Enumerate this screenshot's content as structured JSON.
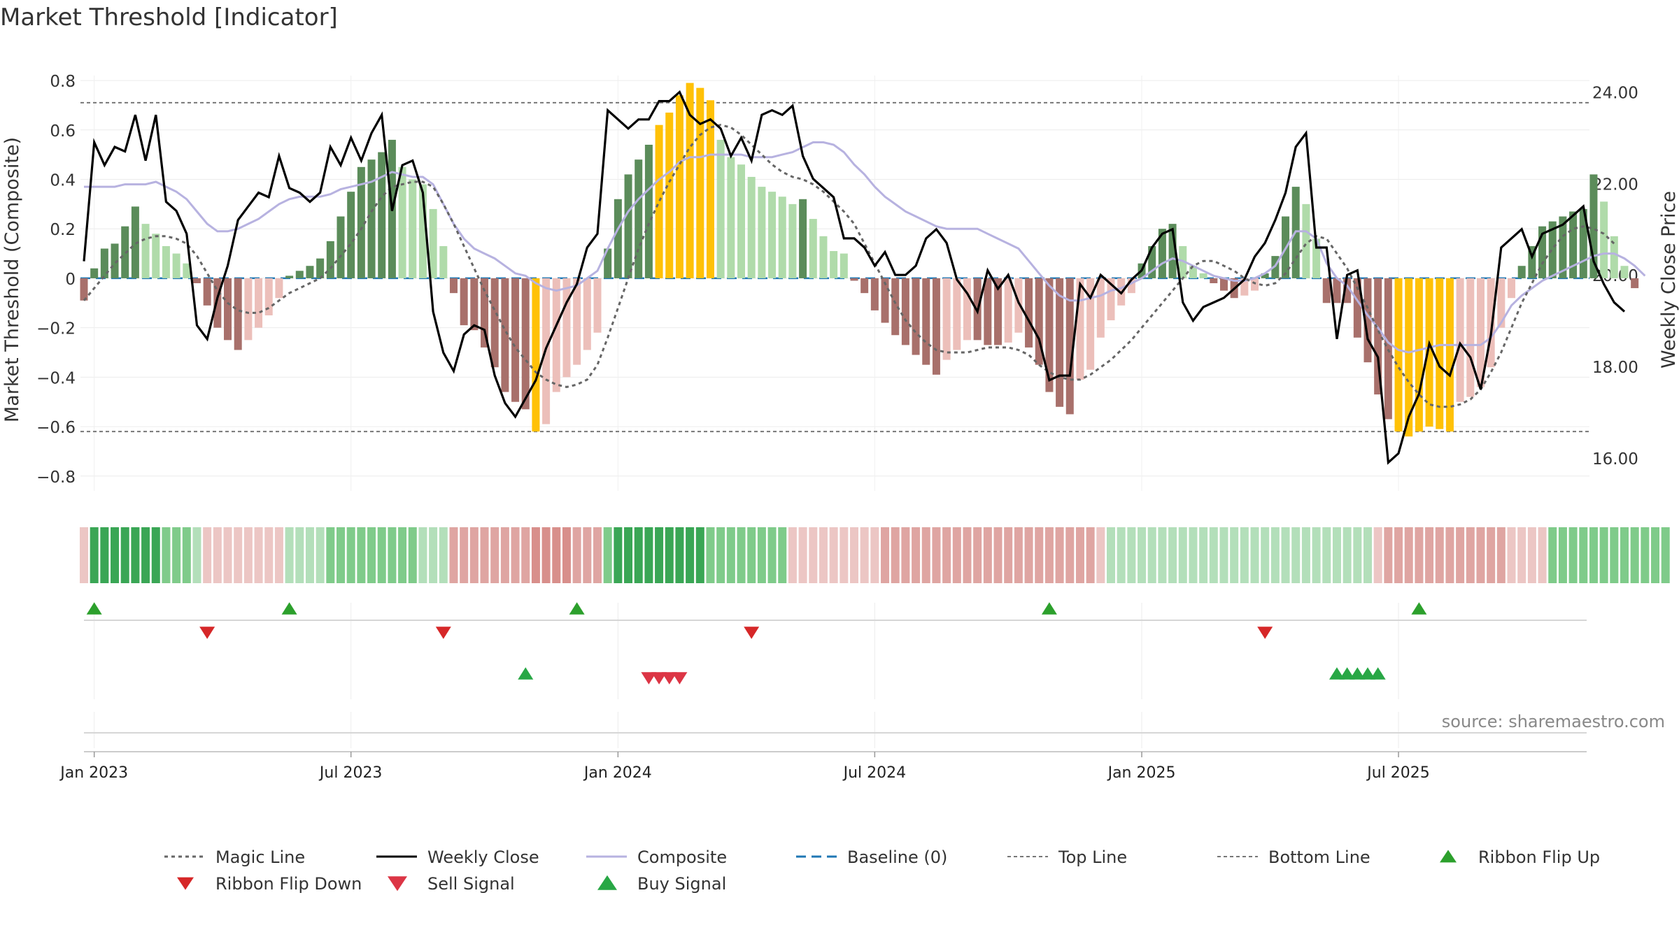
{
  "chart_data": {
    "type": "bar",
    "title": "Market Threshold [Indicator]",
    "ylabel": "Market Threshold (Composite)",
    "ylabel_right": "Weekly Close Price",
    "source": "source: sharemaestro.com",
    "ylim": [
      -0.86,
      0.82
    ],
    "ylim_right": [
      15.28,
      24.36
    ],
    "yticks": [
      {
        "v": 0.8,
        "label": "0.8"
      },
      {
        "v": 0.6,
        "label": "0.6"
      },
      {
        "v": 0.4,
        "label": "0.4"
      },
      {
        "v": 0.2,
        "label": "0.2"
      },
      {
        "v": 0,
        "label": "0"
      },
      {
        "v": -0.2,
        "label": "−0.2"
      },
      {
        "v": -0.4,
        "label": "−0.4"
      },
      {
        "v": -0.6,
        "label": "−0.6"
      },
      {
        "v": -0.8,
        "label": "−0.8"
      }
    ],
    "yticks_right": [
      {
        "v": 24,
        "label": "24.00"
      },
      {
        "v": 22,
        "label": "22.00"
      },
      {
        "v": 20,
        "label": "20.00"
      },
      {
        "v": 18,
        "label": "18.00"
      },
      {
        "v": 16,
        "label": "16.00"
      }
    ],
    "xticks": [
      {
        "week": 1,
        "label": "Jan 2023"
      },
      {
        "week": 26,
        "label": "Jul 2023"
      },
      {
        "week": 52,
        "label": "Jan 2024"
      },
      {
        "week": 77,
        "label": "Jul 2024"
      },
      {
        "week": 103,
        "label": "Jan 2025"
      },
      {
        "week": 128,
        "label": "Jul 2025"
      }
    ],
    "top_line": 0.71,
    "bottom_line": -0.62,
    "composite": [
      -0.09,
      0.04,
      0.12,
      0.14,
      0.21,
      0.29,
      0.22,
      0.18,
      0.13,
      0.1,
      0.06,
      -0.02,
      -0.11,
      -0.2,
      -0.25,
      -0.29,
      -0.25,
      -0.2,
      -0.15,
      -0.08,
      0.01,
      0.03,
      0.05,
      0.08,
      0.15,
      0.25,
      0.35,
      0.45,
      0.48,
      0.51,
      0.56,
      0.45,
      0.4,
      0.38,
      0.28,
      0.13,
      -0.06,
      -0.19,
      -0.21,
      -0.28,
      -0.36,
      -0.46,
      -0.5,
      -0.53,
      -0.62,
      -0.59,
      -0.46,
      -0.4,
      -0.35,
      -0.29,
      -0.22,
      0.12,
      0.32,
      0.42,
      0.48,
      0.54,
      0.62,
      0.67,
      0.74,
      0.79,
      0.77,
      0.72,
      0.56,
      0.49,
      0.46,
      0.41,
      0.37,
      0.35,
      0.33,
      0.3,
      0.32,
      0.24,
      0.17,
      0.11,
      0.1,
      -0.01,
      -0.06,
      -0.13,
      -0.18,
      -0.23,
      -0.27,
      -0.31,
      -0.35,
      -0.39,
      -0.33,
      -0.29,
      -0.25,
      -0.25,
      -0.27,
      -0.27,
      -0.26,
      -0.22,
      -0.28,
      -0.35,
      -0.46,
      -0.52,
      -0.55,
      -0.41,
      -0.37,
      -0.24,
      -0.17,
      -0.11,
      -0.06,
      0.06,
      0.13,
      0.2,
      0.22,
      0.13,
      0.05,
      0.02,
      -0.02,
      -0.05,
      -0.08,
      -0.07,
      -0.05,
      0.02,
      0.09,
      0.25,
      0.37,
      0.3,
      0.16,
      -0.1,
      -0.1,
      -0.1,
      -0.24,
      -0.34,
      -0.47,
      -0.57,
      -0.62,
      -0.64,
      -0.62,
      -0.6,
      -0.61,
      -0.62,
      -0.5,
      -0.48,
      -0.44,
      -0.36,
      -0.2,
      -0.08,
      0.05,
      0.13,
      0.21,
      0.23,
      0.25,
      0.27,
      0.28,
      0.42,
      0.31,
      0.17,
      0.05,
      -0.04
    ],
    "weekly_close": [
      20.3,
      22.9,
      22.4,
      22.8,
      22.7,
      23.5,
      22.5,
      23.5,
      21.6,
      21.4,
      20.9,
      18.9,
      18.6,
      19.5,
      20.2,
      21.2,
      21.5,
      21.8,
      21.7,
      22.6,
      21.9,
      21.8,
      21.6,
      21.8,
      22.8,
      22.4,
      23.0,
      22.5,
      23.1,
      23.5,
      21.4,
      22.4,
      22.5,
      21.8,
      19.2,
      18.3,
      17.9,
      18.7,
      18.9,
      18.8,
      17.8,
      17.2,
      16.9,
      17.3,
      17.7,
      18.4,
      18.9,
      19.4,
      19.8,
      20.6,
      20.9,
      23.6,
      23.4,
      23.2,
      23.4,
      23.4,
      23.8,
      23.8,
      24.0,
      23.5,
      23.3,
      23.4,
      23.2,
      22.6,
      23.0,
      22.5,
      23.5,
      23.6,
      23.5,
      23.7,
      22.6,
      22.1,
      21.9,
      21.7,
      20.8,
      20.8,
      20.6,
      20.2,
      20.5,
      20.0,
      20.0,
      20.2,
      20.8,
      21.0,
      20.7,
      19.9,
      19.6,
      19.2,
      20.1,
      19.7,
      20.0,
      19.4,
      19.0,
      18.6,
      17.7,
      17.8,
      17.8,
      19.8,
      19.5,
      20.0,
      19.8,
      19.6,
      19.9,
      20.1,
      20.6,
      20.9,
      21.0,
      19.4,
      19.0,
      19.3,
      19.4,
      19.5,
      19.7,
      19.9,
      20.4,
      20.7,
      21.2,
      21.8,
      22.8,
      23.1,
      20.6,
      20.6,
      18.6,
      20.0,
      20.1,
      18.6,
      18.2,
      15.9,
      16.1,
      16.9,
      17.4,
      18.5,
      18.0,
      17.8,
      18.5,
      18.2,
      17.5,
      18.7,
      20.6,
      20.8,
      21.0,
      20.4,
      20.9,
      21.0,
      21.1,
      21.3,
      21.5,
      20.3,
      19.8,
      19.4,
      19.2
    ],
    "composite_line": [
      0.37,
      0.37,
      0.37,
      0.37,
      0.38,
      0.38,
      0.38,
      0.39,
      0.37,
      0.35,
      0.32,
      0.27,
      0.22,
      0.19,
      0.19,
      0.2,
      0.22,
      0.24,
      0.27,
      0.3,
      0.32,
      0.33,
      0.33,
      0.33,
      0.34,
      0.36,
      0.37,
      0.38,
      0.39,
      0.41,
      0.43,
      0.42,
      0.41,
      0.41,
      0.38,
      0.3,
      0.22,
      0.16,
      0.12,
      0.1,
      0.08,
      0.05,
      0.02,
      0.01,
      -0.02,
      -0.04,
      -0.05,
      -0.04,
      -0.03,
      0.0,
      0.03,
      0.12,
      0.2,
      0.27,
      0.32,
      0.36,
      0.4,
      0.43,
      0.47,
      0.49,
      0.49,
      0.5,
      0.5,
      0.5,
      0.5,
      0.49,
      0.49,
      0.49,
      0.5,
      0.51,
      0.53,
      0.55,
      0.55,
      0.54,
      0.51,
      0.46,
      0.42,
      0.37,
      0.33,
      0.3,
      0.27,
      0.25,
      0.23,
      0.21,
      0.2,
      0.2,
      0.2,
      0.2,
      0.18,
      0.16,
      0.14,
      0.12,
      0.07,
      0.02,
      -0.03,
      -0.07,
      -0.09,
      -0.09,
      -0.08,
      -0.07,
      -0.05,
      -0.04,
      -0.02,
      0.0,
      0.03,
      0.06,
      0.08,
      0.07,
      0.05,
      0.03,
      0.01,
      0.0,
      -0.01,
      -0.01,
      0.0,
      0.02,
      0.05,
      0.12,
      0.19,
      0.19,
      0.16,
      0.06,
      0.0,
      -0.03,
      -0.09,
      -0.15,
      -0.2,
      -0.26,
      -0.29,
      -0.3,
      -0.29,
      -0.28,
      -0.27,
      -0.27,
      -0.27,
      -0.27,
      -0.27,
      -0.24,
      -0.18,
      -0.11,
      -0.07,
      -0.04,
      -0.01,
      0.01,
      0.03,
      0.05,
      0.07,
      0.09,
      0.1,
      0.1,
      0.08,
      0.05,
      0.01
    ],
    "magic_line": [
      -0.09,
      -0.04,
      0.01,
      0.06,
      0.1,
      0.14,
      0.16,
      0.17,
      0.17,
      0.16,
      0.14,
      0.09,
      0.02,
      -0.05,
      -0.1,
      -0.13,
      -0.14,
      -0.14,
      -0.12,
      -0.09,
      -0.06,
      -0.04,
      -0.02,
      0.0,
      0.04,
      0.09,
      0.14,
      0.2,
      0.27,
      0.33,
      0.37,
      0.38,
      0.39,
      0.39,
      0.37,
      0.3,
      0.22,
      0.13,
      0.04,
      -0.05,
      -0.13,
      -0.21,
      -0.28,
      -0.33,
      -0.38,
      -0.41,
      -0.43,
      -0.44,
      -0.43,
      -0.41,
      -0.35,
      -0.24,
      -0.12,
      0.0,
      0.12,
      0.22,
      0.31,
      0.39,
      0.46,
      0.53,
      0.58,
      0.61,
      0.62,
      0.61,
      0.58,
      0.54,
      0.5,
      0.46,
      0.43,
      0.41,
      0.4,
      0.38,
      0.35,
      0.31,
      0.27,
      0.22,
      0.14,
      0.06,
      -0.02,
      -0.1,
      -0.17,
      -0.22,
      -0.26,
      -0.29,
      -0.3,
      -0.3,
      -0.3,
      -0.29,
      -0.28,
      -0.28,
      -0.28,
      -0.29,
      -0.31,
      -0.35,
      -0.38,
      -0.4,
      -0.41,
      -0.41,
      -0.39,
      -0.36,
      -0.33,
      -0.29,
      -0.25,
      -0.2,
      -0.15,
      -0.1,
      -0.05,
      0.0,
      0.05,
      0.07,
      0.07,
      0.05,
      0.03,
      0.0,
      -0.02,
      -0.03,
      -0.02,
      0.02,
      0.08,
      0.14,
      0.17,
      0.16,
      0.1,
      0.04,
      -0.04,
      -0.12,
      -0.21,
      -0.29,
      -0.36,
      -0.42,
      -0.47,
      -0.51,
      -0.52,
      -0.52,
      -0.51,
      -0.49,
      -0.45,
      -0.38,
      -0.3,
      -0.2,
      -0.1,
      -0.02,
      0.06,
      0.12,
      0.17,
      0.2,
      0.21,
      0.2,
      0.18,
      0.14
    ],
    "ribbon": [
      -1,
      3,
      3,
      3,
      3,
      3,
      3,
      3,
      2,
      2,
      2,
      1,
      -1,
      -1,
      -1,
      -1,
      -1,
      -1,
      -1,
      -1,
      1,
      1,
      1,
      1,
      2,
      2,
      2,
      2,
      2,
      2,
      2,
      2,
      2,
      1,
      1,
      1,
      -2,
      -2,
      -2,
      -2,
      -2,
      -2,
      -2,
      -2,
      -3,
      -3,
      -3,
      -3,
      -2,
      -2,
      -2,
      2,
      3,
      3,
      3,
      3,
      3,
      3,
      3,
      3,
      3,
      2,
      2,
      2,
      2,
      2,
      2,
      2,
      2,
      -1,
      -1,
      -1,
      -1,
      -1,
      -1,
      -1,
      -1,
      -1,
      -2,
      -2,
      -2,
      -2,
      -2,
      -2,
      -2,
      -2,
      -2,
      -2,
      -2,
      -2,
      -2,
      -2,
      -2,
      -2,
      -2,
      -2,
      -2,
      -2,
      -2,
      -1,
      1,
      1,
      1,
      1,
      1,
      1,
      1,
      1,
      1,
      1,
      1,
      1,
      1,
      1,
      1,
      1,
      1,
      1,
      1,
      1,
      1,
      1,
      1,
      1,
      1,
      1,
      -1,
      -2,
      -2,
      -2,
      -2,
      -2,
      -2,
      -2,
      -2,
      -2,
      -2,
      -2,
      -2,
      -1,
      -1,
      -1,
      -1,
      2,
      2,
      2,
      2,
      2,
      2,
      2,
      2,
      2,
      2,
      2,
      2
    ],
    "ribbon_flip_up": [
      1,
      20,
      48,
      94,
      130
    ],
    "ribbon_flip_down": [
      12,
      35,
      65,
      115
    ],
    "buy_signal": [
      43,
      122,
      123,
      124,
      125,
      126
    ],
    "sell_signal": [
      55,
      56,
      57,
      58
    ],
    "series": [
      {
        "name": "Magic Line",
        "color": "#666666"
      },
      {
        "name": "Weekly Close",
        "color": "#000000"
      },
      {
        "name": "Composite",
        "color": "#b7b2e0"
      },
      {
        "name": "Baseline (0)",
        "color": "#1f77b4"
      },
      {
        "name": "Top Line",
        "color": "#777777"
      },
      {
        "name": "Bottom Line",
        "color": "#777777"
      },
      {
        "name": "Ribbon Flip Up",
        "color": "#2ca02c"
      },
      {
        "name": "Ribbon Flip Down",
        "color": "#d62728"
      },
      {
        "name": "Sell Signal",
        "color": "#dc3545"
      },
      {
        "name": "Buy Signal",
        "color": "#28a745"
      }
    ],
    "colors": {
      "strong_pos": "#5b8c5a",
      "weak_pos": "#b0dbaa",
      "strong_neg": "#a8706b",
      "weak_neg": "#ecbfba",
      "extreme": "#ffc107",
      "ribbon_pos3": "#3aa655",
      "ribbon_pos2": "#7fcb8a",
      "ribbon_pos1": "#b3dfba",
      "ribbon_neg1": "#ecc6c4",
      "ribbon_neg2": "#dfa5a2",
      "ribbon_neg3": "#d88f8b"
    }
  }
}
